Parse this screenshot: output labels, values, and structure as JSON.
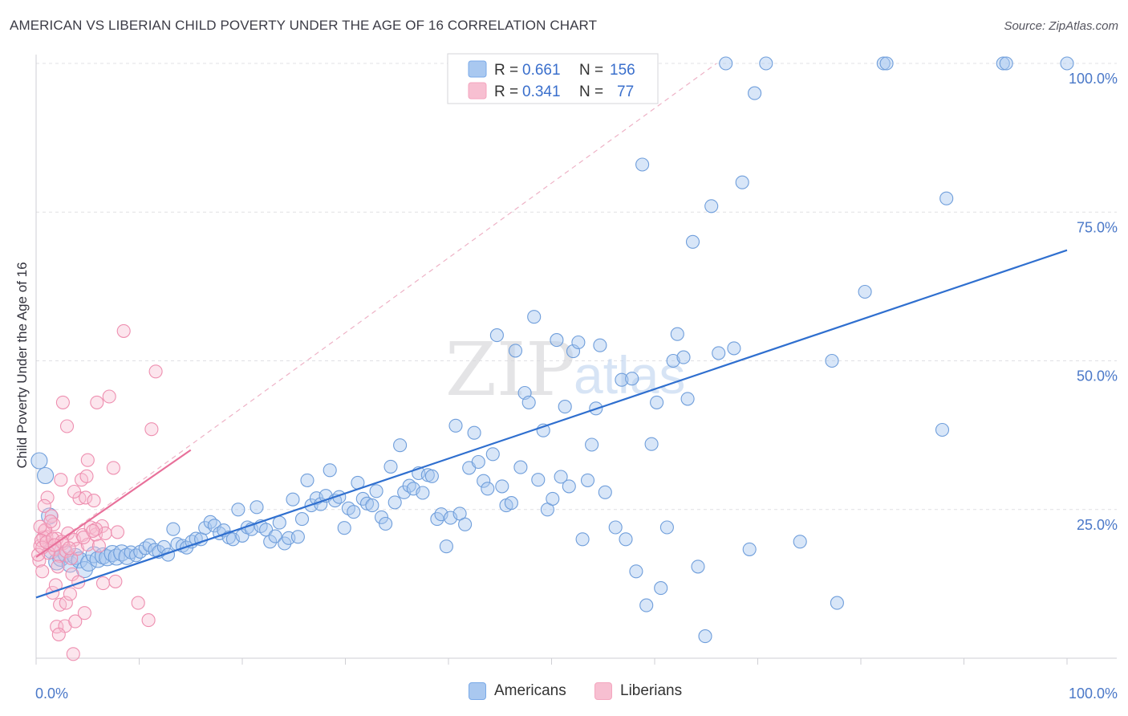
{
  "header": {
    "title": "AMERICAN VS LIBERIAN CHILD POVERTY UNDER THE AGE OF 16 CORRELATION CHART",
    "source": "Source: ZipAtlas.com"
  },
  "watermark": {
    "zip": "ZIP",
    "atlas": "atlas"
  },
  "legend": {
    "r_label": "R =",
    "n_label": "N =",
    "rows": [
      {
        "name": "Americans",
        "r": "0.661",
        "n": "156",
        "color": "#7aaae8"
      },
      {
        "name": "Liberians",
        "r": "0.341",
        "n": "77",
        "color": "#f4a6bf"
      }
    ]
  },
  "colors": {
    "american_fill": "#a9c8f0",
    "american_stroke": "#6f9edb",
    "american_line": "#2f6fcf",
    "liberian_fill": "#f7bfd1",
    "liberian_stroke": "#ee8fb0",
    "liberian_line": "#e8709a",
    "tick_text": "#4a78c8"
  },
  "chart_data": {
    "type": "scatter",
    "title": "AMERICAN VS LIBERIAN CHILD POVERTY UNDER THE AGE OF 16 CORRELATION CHART",
    "xlabel": "",
    "ylabel": "Child Poverty Under the Age of 16",
    "xlim": [
      0,
      100
    ],
    "ylim": [
      0,
      100
    ],
    "x_tick_labels": [
      "0.0%",
      "100.0%"
    ],
    "y_tick_labels": [
      "25.0%",
      "50.0%",
      "75.0%",
      "100.0%"
    ],
    "y_ticks": [
      25,
      50,
      75,
      100
    ],
    "grid": true,
    "legend_position": "top-center",
    "series": [
      {
        "name": "Americans",
        "trend": {
          "x": [
            0,
            100
          ],
          "y": [
            10.2,
            68.6
          ]
        },
        "points": [
          [
            0.3,
            33.2
          ],
          [
            0.9,
            30.7
          ],
          [
            1.3,
            23.9
          ],
          [
            1.5,
            18.1
          ],
          [
            2.0,
            16.2
          ],
          [
            2.4,
            16.8
          ],
          [
            2.9,
            17.5
          ],
          [
            3.3,
            15.8
          ],
          [
            3.8,
            17.1
          ],
          [
            4.2,
            16.5
          ],
          [
            4.7,
            14.9
          ],
          [
            5.1,
            16.0
          ],
          [
            5.6,
            17.4
          ],
          [
            6.0,
            16.6
          ],
          [
            6.5,
            17.2
          ],
          [
            6.9,
            16.9
          ],
          [
            7.4,
            17.6
          ],
          [
            7.8,
            17.0
          ],
          [
            8.3,
            17.7
          ],
          [
            8.8,
            17.1
          ],
          [
            9.2,
            17.8
          ],
          [
            9.7,
            17.3
          ],
          [
            10.1,
            17.9
          ],
          [
            10.6,
            18.5
          ],
          [
            11.0,
            19.0
          ],
          [
            11.5,
            18.2
          ],
          [
            11.9,
            17.9
          ],
          [
            12.4,
            18.7
          ],
          [
            12.8,
            17.4
          ],
          [
            13.3,
            21.7
          ],
          [
            13.7,
            19.2
          ],
          [
            14.2,
            18.9
          ],
          [
            14.6,
            18.6
          ],
          [
            15.1,
            19.6
          ],
          [
            15.5,
            20.1
          ],
          [
            16.0,
            20.0
          ],
          [
            16.4,
            21.9
          ],
          [
            16.9,
            22.9
          ],
          [
            17.3,
            22.3
          ],
          [
            17.8,
            21.0
          ],
          [
            18.2,
            21.5
          ],
          [
            18.7,
            20.3
          ],
          [
            19.1,
            20.0
          ],
          [
            19.6,
            25.0
          ],
          [
            20.0,
            20.6
          ],
          [
            20.5,
            22.0
          ],
          [
            20.9,
            21.7
          ],
          [
            21.4,
            25.4
          ],
          [
            21.8,
            22.2
          ],
          [
            22.3,
            21.6
          ],
          [
            22.7,
            19.6
          ],
          [
            23.2,
            20.5
          ],
          [
            23.6,
            22.8
          ],
          [
            24.1,
            19.3
          ],
          [
            24.5,
            20.2
          ],
          [
            24.9,
            26.7
          ],
          [
            25.4,
            20.4
          ],
          [
            25.8,
            23.4
          ],
          [
            26.3,
            29.9
          ],
          [
            26.7,
            25.7
          ],
          [
            27.2,
            26.9
          ],
          [
            27.6,
            25.9
          ],
          [
            28.1,
            27.3
          ],
          [
            28.5,
            31.6
          ],
          [
            29.0,
            26.5
          ],
          [
            29.4,
            27.1
          ],
          [
            29.9,
            21.9
          ],
          [
            30.3,
            25.2
          ],
          [
            30.8,
            24.6
          ],
          [
            31.2,
            29.5
          ],
          [
            31.7,
            26.8
          ],
          [
            32.1,
            26.0
          ],
          [
            32.6,
            25.7
          ],
          [
            33.0,
            28.1
          ],
          [
            33.5,
            23.7
          ],
          [
            33.9,
            22.6
          ],
          [
            34.4,
            32.2
          ],
          [
            34.8,
            26.2
          ],
          [
            35.3,
            35.8
          ],
          [
            35.7,
            27.9
          ],
          [
            36.2,
            29.0
          ],
          [
            36.6,
            28.5
          ],
          [
            37.1,
            31.1
          ],
          [
            37.5,
            27.8
          ],
          [
            38.0,
            30.8
          ],
          [
            38.4,
            30.6
          ],
          [
            38.9,
            23.4
          ],
          [
            39.3,
            24.2
          ],
          [
            39.8,
            18.8
          ],
          [
            40.2,
            23.6
          ],
          [
            40.7,
            39.1
          ],
          [
            41.1,
            24.3
          ],
          [
            41.6,
            22.5
          ],
          [
            42.0,
            32.0
          ],
          [
            42.5,
            37.9
          ],
          [
            42.9,
            33.0
          ],
          [
            43.4,
            29.8
          ],
          [
            43.8,
            28.5
          ],
          [
            44.3,
            34.3
          ],
          [
            44.7,
            54.3
          ],
          [
            45.2,
            28.9
          ],
          [
            45.6,
            25.7
          ],
          [
            46.1,
            26.1
          ],
          [
            46.5,
            51.7
          ],
          [
            47.0,
            32.1
          ],
          [
            47.4,
            44.6
          ],
          [
            47.8,
            43.0
          ],
          [
            48.3,
            57.4
          ],
          [
            48.7,
            30.0
          ],
          [
            49.2,
            38.3
          ],
          [
            49.6,
            25.0
          ],
          [
            50.1,
            26.8
          ],
          [
            50.5,
            53.5
          ],
          [
            50.9,
            30.5
          ],
          [
            51.3,
            42.3
          ],
          [
            51.7,
            28.9
          ],
          [
            52.1,
            51.6
          ],
          [
            52.6,
            53.1
          ],
          [
            53.0,
            20.0
          ],
          [
            53.5,
            29.9
          ],
          [
            53.9,
            35.9
          ],
          [
            54.3,
            42.0
          ],
          [
            54.7,
            52.6
          ],
          [
            55.2,
            27.9
          ],
          [
            55.6,
            95.0
          ],
          [
            56.2,
            22.0
          ],
          [
            56.8,
            46.8
          ],
          [
            57.2,
            20.0
          ],
          [
            57.8,
            47.0
          ],
          [
            58.2,
            14.6
          ],
          [
            58.8,
            83.0
          ],
          [
            59.2,
            8.9
          ],
          [
            59.7,
            36.0
          ],
          [
            60.2,
            43.0
          ],
          [
            60.6,
            11.8
          ],
          [
            61.2,
            22.0
          ],
          [
            61.8,
            50.0
          ],
          [
            62.2,
            54.5
          ],
          [
            62.8,
            50.6
          ],
          [
            63.2,
            43.6
          ],
          [
            63.7,
            70.0
          ],
          [
            64.2,
            15.4
          ],
          [
            64.9,
            3.7
          ],
          [
            65.5,
            76.0
          ],
          [
            66.2,
            51.3
          ],
          [
            66.9,
            100.0
          ],
          [
            67.7,
            52.1
          ],
          [
            68.5,
            80.0
          ],
          [
            69.2,
            18.3
          ],
          [
            69.7,
            95.0
          ],
          [
            70.8,
            100.0
          ],
          [
            74.1,
            19.6
          ],
          [
            77.2,
            50.0
          ],
          [
            77.7,
            9.3
          ],
          [
            80.4,
            61.6
          ],
          [
            82.2,
            100.0
          ],
          [
            82.5,
            100.0
          ],
          [
            87.9,
            38.4
          ],
          [
            88.3,
            77.3
          ],
          [
            93.8,
            100.0
          ],
          [
            94.1,
            100.0
          ],
          [
            100.0,
            100.0
          ]
        ]
      },
      {
        "name": "Liberians",
        "trend": {
          "x": [
            0,
            15
          ],
          "y": [
            17.0,
            35.0
          ]
        },
        "points": [
          [
            0.4,
            18.9
          ],
          [
            0.8,
            21.4
          ],
          [
            0.3,
            16.4
          ],
          [
            1.0,
            20.4
          ],
          [
            1.3,
            19.0
          ],
          [
            0.6,
            14.6
          ],
          [
            1.5,
            23.9
          ],
          [
            1.8,
            18.3
          ],
          [
            1.1,
            27.0
          ],
          [
            2.0,
            20.1
          ],
          [
            2.3,
            17.2
          ],
          [
            1.7,
            22.5
          ],
          [
            2.6,
            19.3
          ],
          [
            2.1,
            15.4
          ],
          [
            2.9,
            18.0
          ],
          [
            3.1,
            21.0
          ],
          [
            3.4,
            16.8
          ],
          [
            3.7,
            19.9
          ],
          [
            2.4,
            30.0
          ],
          [
            4.0,
            18.4
          ],
          [
            4.2,
            26.9
          ],
          [
            4.5,
            20.7
          ],
          [
            4.8,
            27.0
          ],
          [
            5.0,
            19.1
          ],
          [
            5.3,
            22.0
          ],
          [
            5.6,
            26.5
          ],
          [
            5.8,
            20.8
          ],
          [
            6.1,
            18.9
          ],
          [
            6.4,
            22.2
          ],
          [
            6.7,
            21.0
          ],
          [
            3.0,
            39.0
          ],
          [
            2.6,
            43.0
          ],
          [
            5.9,
            43.0
          ],
          [
            7.1,
            44.0
          ],
          [
            7.5,
            32.0
          ],
          [
            8.5,
            55.0
          ],
          [
            11.2,
            38.5
          ],
          [
            11.6,
            48.2
          ],
          [
            5.0,
            33.3
          ],
          [
            4.4,
            30.0
          ],
          [
            4.9,
            30.6
          ],
          [
            3.7,
            28.0
          ],
          [
            5.8,
            21.7
          ],
          [
            7.9,
            21.2
          ],
          [
            1.6,
            11.0
          ],
          [
            2.3,
            9.0
          ],
          [
            2.9,
            9.3
          ],
          [
            3.3,
            10.8
          ],
          [
            2.0,
            5.3
          ],
          [
            2.8,
            5.4
          ],
          [
            2.2,
            4.0
          ],
          [
            3.8,
            6.2
          ],
          [
            4.7,
            7.6
          ],
          [
            3.5,
            14.1
          ],
          [
            4.1,
            12.8
          ],
          [
            1.9,
            12.3
          ],
          [
            6.5,
            12.6
          ],
          [
            7.7,
            12.9
          ],
          [
            9.9,
            9.3
          ],
          [
            10.9,
            6.4
          ],
          [
            3.6,
            0.7
          ],
          [
            0.7,
            20.3
          ],
          [
            1.2,
            17.7
          ],
          [
            0.9,
            21.6
          ],
          [
            1.4,
            23.0
          ],
          [
            0.5,
            19.8
          ],
          [
            0.2,
            17.4
          ],
          [
            0.6,
            18.6
          ],
          [
            1.0,
            19.5
          ],
          [
            1.6,
            20.1
          ],
          [
            2.5,
            19.6
          ],
          [
            3.2,
            18.5
          ],
          [
            4.6,
            20.3
          ],
          [
            5.5,
            21.4
          ],
          [
            0.4,
            22.1
          ],
          [
            1.8,
            19.0
          ],
          [
            0.8,
            25.6
          ]
        ]
      }
    ],
    "reference_line": {
      "x": [
        0,
        66
      ],
      "y": [
        17,
        100
      ],
      "style": "dashed"
    }
  }
}
